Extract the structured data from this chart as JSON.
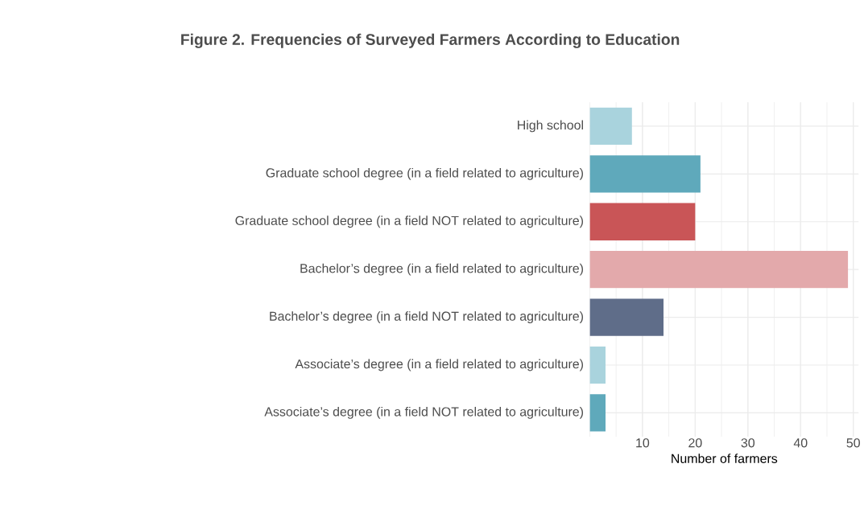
{
  "chart_data": {
    "type": "bar",
    "orientation": "horizontal",
    "title": "Figure 2. Frequencies of Surveyed Farmers According to Education",
    "categories": [
      "High school",
      "Graduate school degree (in a field related to agriculture)",
      "Graduate school degree (in a field NOT related to agriculture)",
      "Bachelor’s degree (in a field related to agriculture)",
      "Bachelor’s degree (in a field NOT related to agriculture)",
      "Associate’s degree (in a field related to agriculture)",
      "Associate’s degree (in a field NOT related to agriculture)"
    ],
    "values": [
      8,
      21,
      20,
      49,
      14,
      3,
      3
    ],
    "colors": [
      "#a9d3dd",
      "#5fa9bb",
      "#c95557",
      "#e3a9ab",
      "#5f6d89",
      "#a9d3dd",
      "#5fa9bb"
    ],
    "xlim": [
      0,
      51
    ],
    "xticks": [
      10,
      20,
      30,
      40,
      50
    ],
    "xlabel": "Number of farmers",
    "grid": true
  }
}
